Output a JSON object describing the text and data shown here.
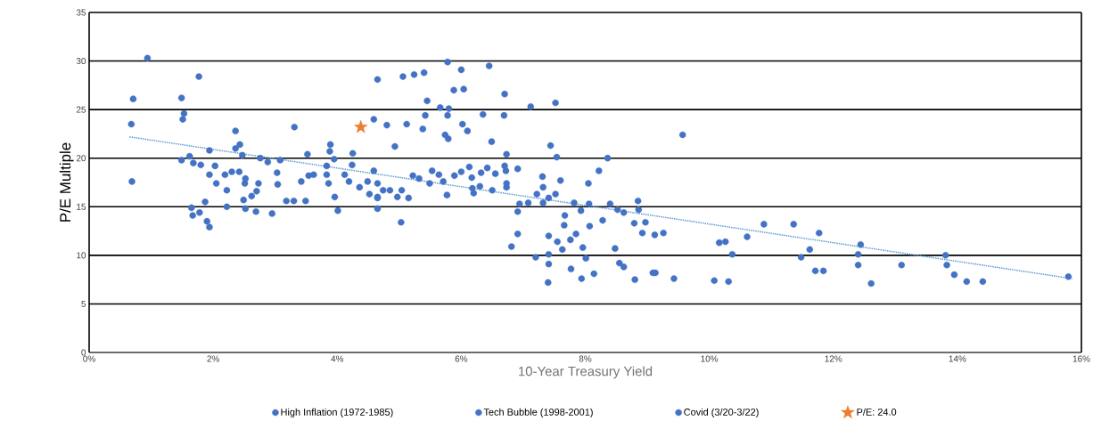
{
  "chart_data": {
    "type": "scatter",
    "xlabel": "10-Year Treasury Yield",
    "ylabel": "P/E Multiple",
    "xlim": [
      0,
      16
    ],
    "xticks": [
      {
        "value": 0,
        "label": "0%"
      },
      {
        "value": 2,
        "label": "2%"
      },
      {
        "value": 4,
        "label": "4%"
      },
      {
        "value": 6,
        "label": "6%"
      },
      {
        "value": 8,
        "label": "8%"
      },
      {
        "value": 10,
        "label": "10%"
      },
      {
        "value": 12,
        "label": "12%"
      },
      {
        "value": 14,
        "label": "14%"
      },
      {
        "value": 16,
        "label": "16%"
      }
    ],
    "ylim": [
      0,
      35
    ],
    "yticks": [
      0,
      5,
      10,
      15,
      20,
      25,
      30,
      35
    ],
    "grid": "y",
    "legend": "bottom",
    "marker": "circle",
    "series": [
      {
        "color": "#4472c4",
        "x": [
          0.69,
          1.94,
          1.49,
          1.62,
          1.68,
          1.8,
          2.03,
          1.94,
          2.05,
          2.22,
          1.87,
          1.65,
          1.67,
          1.78,
          1.9,
          1.94,
          2.22,
          2.19,
          2.3,
          2.42,
          2.52,
          2.51,
          2.73,
          2.7,
          2.62,
          2.49,
          2.52,
          2.69,
          2.95,
          3.18,
          3.3,
          3.49,
          3.03,
          3.04,
          2.76,
          2.88,
          3.08,
          2.36,
          2.43,
          2.47,
          3.31,
          3.52,
          3.42,
          3.54,
          3.62,
          4.25,
          4.24,
          3.83,
          3.95,
          3.83,
          3.86,
          3.96,
          4.01,
          4.12,
          4.19,
          4.36,
          4.49,
          4.52,
          4.59,
          4.65,
          4.65,
          3.89,
          3.88,
          5.4,
          6.7,
          7.12,
          7.52,
          5.78,
          6.02,
          6.1,
          6.35,
          6.69,
          4.8,
          5.38,
          5.74,
          5.79,
          6.49,
          7.44,
          7.54,
          6.73,
          5.53,
          5.22,
          5.32,
          5.64,
          5.49,
          5.71,
          5.89,
          6.0,
          6.13,
          6.17,
          6.32,
          6.42,
          6.55,
          6.7,
          6.72,
          6.91,
          6.73,
          6.73,
          6.18,
          6.2,
          6.3,
          6.5,
          5.77,
          4.65,
          4.74,
          4.85,
          4.65,
          5.04,
          4.97,
          5.15,
          5.03,
          7.31,
          7.32,
          7.6,
          7.52,
          7.41,
          7.22,
          7.08,
          6.94,
          7.32,
          7.82,
          7.93,
          7.67,
          9.57,
          8.36,
          8.22,
          8.05,
          8.06,
          8.4,
          8.52,
          8.62,
          8.85,
          8.86,
          8.79,
          8.28,
          8.07,
          8.92,
          9.12,
          9.26
        ],
        "values": [
          17.6,
          20.8,
          19.8,
          20.2,
          19.5,
          19.3,
          19.2,
          18.3,
          17.4,
          16.7,
          15.5,
          14.9,
          14.1,
          14.4,
          13.5,
          12.9,
          15.0,
          18.3,
          18.6,
          18.6,
          17.9,
          17.4,
          17.4,
          16.6,
          16.1,
          15.7,
          14.8,
          14.5,
          14.3,
          15.6,
          15.6,
          15.6,
          18.5,
          17.3,
          20.0,
          19.6,
          19.8,
          21.0,
          21.4,
          20.3,
          23.2,
          20.4,
          17.6,
          18.2,
          18.3,
          20.5,
          19.3,
          19.2,
          19.9,
          18.3,
          17.4,
          16.0,
          14.6,
          18.3,
          17.6,
          17.0,
          17.6,
          16.3,
          18.7,
          16.0,
          14.8,
          21.4,
          20.7,
          28.8,
          26.6,
          25.3,
          25.7,
          24.4,
          23.5,
          22.8,
          24.5,
          24.4,
          23.4,
          23.0,
          22.4,
          22.0,
          21.7,
          21.3,
          20.1,
          20.4,
          18.7,
          18.2,
          17.9,
          18.3,
          17.4,
          17.6,
          18.2,
          18.6,
          19.1,
          18.0,
          18.5,
          19.0,
          18.4,
          19.2,
          18.7,
          18.9,
          17.4,
          17.0,
          16.9,
          16.4,
          17.1,
          16.7,
          16.2,
          17.4,
          16.7,
          16.7,
          15.9,
          16.7,
          16.0,
          15.9,
          13.4,
          18.1,
          17.0,
          17.7,
          16.3,
          15.9,
          16.3,
          15.4,
          15.3,
          15.4,
          15.4,
          14.6,
          14.1,
          22.4,
          20.0,
          18.7,
          17.4,
          15.3,
          15.3,
          14.7,
          14.4,
          15.6,
          14.7,
          13.3,
          13.6,
          13.0,
          12.3,
          12.1,
          12.3
        ]
      },
      {
        "name": "High Inflation (1972-1985)",
        "color": "#4472c4",
        "x": [
          6.91,
          6.91,
          7.41,
          7.66,
          7.85,
          6.81,
          7.2,
          7.41,
          7.41,
          7.4,
          7.55,
          7.63,
          7.76,
          7.77,
          7.96,
          8.01,
          7.94,
          8.14,
          8.97,
          8.48,
          8.55,
          8.62,
          8.8,
          9.09,
          9.13,
          9.43,
          10.08,
          10.31,
          10.16,
          10.26,
          10.37,
          10.61,
          10.88,
          11.36,
          11.77,
          11.62,
          11.48,
          11.71,
          11.84,
          12.44,
          12.4,
          12.4,
          12.61,
          13.1,
          13.81,
          13.83,
          13.95,
          14.15,
          14.41,
          15.79
        ],
        "values": [
          14.5,
          12.2,
          12.0,
          13.1,
          12.2,
          10.9,
          9.8,
          10.1,
          9.1,
          7.2,
          11.4,
          10.6,
          11.6,
          8.6,
          10.8,
          9.7,
          7.6,
          8.1,
          13.4,
          10.7,
          9.2,
          8.8,
          7.5,
          8.2,
          8.2,
          7.6,
          7.4,
          7.3,
          11.3,
          11.4,
          10.1,
          11.9,
          13.2,
          13.2,
          12.3,
          10.6,
          9.8,
          8.4,
          8.4,
          11.1,
          10.1,
          9.0,
          7.1,
          9.0,
          10.0,
          9.0,
          8.0,
          7.3,
          7.3,
          7.8
        ]
      },
      {
        "name": "Tech Bubble (1998-2001)",
        "color": "#4472c4",
        "x": [
          4.65,
          4.59,
          5.06,
          5.24,
          5.78,
          6.0,
          6.45,
          5.88,
          6.04,
          5.45,
          5.66,
          5.8,
          5.42,
          5.12,
          4.93
        ],
        "values": [
          28.1,
          24.0,
          28.4,
          28.6,
          29.9,
          29.1,
          29.5,
          27.0,
          27.1,
          25.9,
          25.2,
          25.1,
          24.4,
          23.5,
          21.2
        ]
      },
      {
        "name": "Covid (3/20-3/22)",
        "color": "#4472c4",
        "x": [
          0.94,
          1.77,
          0.71,
          1.49,
          1.53,
          1.51,
          0.68,
          2.36
        ],
        "values": [
          30.3,
          28.4,
          26.1,
          26.2,
          24.6,
          24.0,
          23.5,
          22.8
        ]
      },
      {
        "name": "P/E: 24.0",
        "color": "#ed7d31",
        "marker": "star",
        "x": [
          4.38
        ],
        "values": [
          23.2
        ]
      },
      {
        "type": "line",
        "line_style": "dotted",
        "marker": "none",
        "color": "#5b9bd5",
        "x": [
          0.65,
          15.85
        ],
        "values": [
          22.2,
          7.6
        ]
      }
    ]
  }
}
